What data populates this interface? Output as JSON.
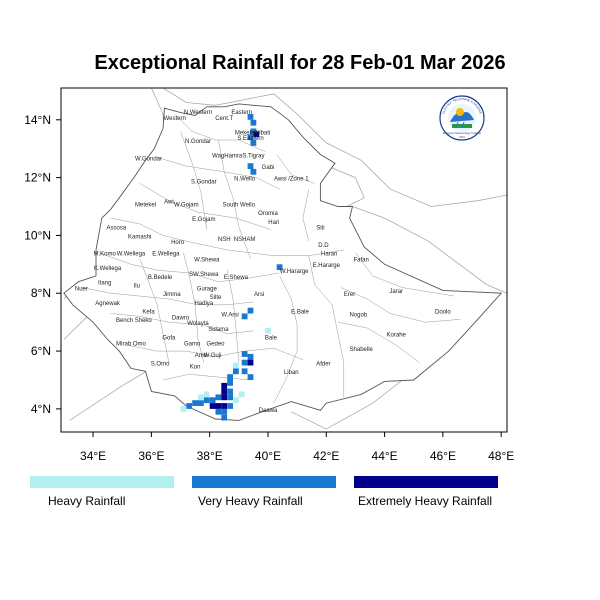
{
  "title": "Exceptional Rainfall for 28 Feb-01 Mar 2026",
  "colors": {
    "heavy": "#b3eef0",
    "very_heavy": "#1a78d0",
    "extremely_heavy": "#00008b",
    "border": "#555555",
    "neighbor_border": "#aaaaaa"
  },
  "chart_data": {
    "type": "heatmap",
    "x_ticks": [
      "34°E",
      "36°E",
      "38°E",
      "40°E",
      "42°E",
      "44°E",
      "46°E",
      "48°E"
    ],
    "y_ticks": [
      "4°N",
      "6°N",
      "8°N",
      "10°N",
      "12°N",
      "14°N"
    ],
    "xlim": [
      32.9,
      48.2
    ],
    "ylim": [
      3.2,
      15.1
    ],
    "legend": [
      {
        "label": "Heavy Rainfall",
        "class": "heavy"
      },
      {
        "label": "Very Heavy Rainfall",
        "class": "very_heavy"
      },
      {
        "label": "Extremely Heavy Rainfall",
        "class": "extremely_heavy"
      }
    ],
    "cells": [
      {
        "lon": 39.4,
        "lat": 14.1,
        "class": "very_heavy"
      },
      {
        "lon": 39.5,
        "lat": 13.9,
        "class": "very_heavy"
      },
      {
        "lon": 39.5,
        "lat": 13.6,
        "class": "very_heavy"
      },
      {
        "lon": 39.4,
        "lat": 13.4,
        "class": "very_heavy"
      },
      {
        "lon": 39.5,
        "lat": 13.2,
        "class": "very_heavy"
      },
      {
        "lon": 39.6,
        "lat": 13.5,
        "class": "extremely_heavy"
      },
      {
        "lon": 39.4,
        "lat": 12.4,
        "class": "very_heavy"
      },
      {
        "lon": 39.5,
        "lat": 12.2,
        "class": "very_heavy"
      },
      {
        "lon": 40.4,
        "lat": 8.9,
        "class": "very_heavy"
      },
      {
        "lon": 39.2,
        "lat": 7.2,
        "class": "very_heavy"
      },
      {
        "lon": 39.4,
        "lat": 7.4,
        "class": "very_heavy"
      },
      {
        "lon": 40.0,
        "lat": 6.7,
        "class": "heavy"
      },
      {
        "lon": 39.2,
        "lat": 5.9,
        "class": "very_heavy"
      },
      {
        "lon": 39.4,
        "lat": 5.8,
        "class": "very_heavy"
      },
      {
        "lon": 39.2,
        "lat": 5.6,
        "class": "very_heavy"
      },
      {
        "lon": 39.4,
        "lat": 5.6,
        "class": "extremely_heavy"
      },
      {
        "lon": 39.2,
        "lat": 5.3,
        "class": "very_heavy"
      },
      {
        "lon": 39.4,
        "lat": 5.1,
        "class": "very_heavy"
      },
      {
        "lon": 38.9,
        "lat": 5.3,
        "class": "very_heavy"
      },
      {
        "lon": 38.7,
        "lat": 5.1,
        "class": "very_heavy"
      },
      {
        "lon": 38.7,
        "lat": 4.9,
        "class": "very_heavy"
      },
      {
        "lon": 38.5,
        "lat": 4.8,
        "class": "extremely_heavy"
      },
      {
        "lon": 38.5,
        "lat": 4.6,
        "class": "extremely_heavy"
      },
      {
        "lon": 38.7,
        "lat": 4.6,
        "class": "very_heavy"
      },
      {
        "lon": 38.3,
        "lat": 4.4,
        "class": "very_heavy"
      },
      {
        "lon": 38.5,
        "lat": 4.4,
        "class": "extremely_heavy"
      },
      {
        "lon": 38.7,
        "lat": 4.4,
        "class": "very_heavy"
      },
      {
        "lon": 38.1,
        "lat": 4.3,
        "class": "very_heavy"
      },
      {
        "lon": 37.9,
        "lat": 4.3,
        "class": "very_heavy"
      },
      {
        "lon": 37.7,
        "lat": 4.2,
        "class": "very_heavy"
      },
      {
        "lon": 37.5,
        "lat": 4.2,
        "class": "very_heavy"
      },
      {
        "lon": 37.3,
        "lat": 4.1,
        "class": "very_heavy"
      },
      {
        "lon": 37.1,
        "lat": 4.0,
        "class": "heavy"
      },
      {
        "lon": 38.1,
        "lat": 4.1,
        "class": "extremely_heavy"
      },
      {
        "lon": 38.3,
        "lat": 4.1,
        "class": "extremely_heavy"
      },
      {
        "lon": 38.5,
        "lat": 4.1,
        "class": "extremely_heavy"
      },
      {
        "lon": 38.7,
        "lat": 4.1,
        "class": "very_heavy"
      },
      {
        "lon": 38.3,
        "lat": 3.9,
        "class": "very_heavy"
      },
      {
        "lon": 38.5,
        "lat": 3.9,
        "class": "very_heavy"
      },
      {
        "lon": 38.5,
        "lat": 3.7,
        "class": "very_heavy"
      },
      {
        "lon": 37.9,
        "lat": 4.5,
        "class": "heavy"
      },
      {
        "lon": 37.7,
        "lat": 4.4,
        "class": "heavy"
      },
      {
        "lon": 38.9,
        "lat": 4.3,
        "class": "heavy"
      },
      {
        "lon": 39.1,
        "lat": 4.5,
        "class": "heavy"
      },
      {
        "lon": 38.9,
        "lat": 5.5,
        "class": "heavy"
      }
    ]
  },
  "regions": [
    {
      "name": "Western",
      "lon": 36.8,
      "lat": 14.0
    },
    {
      "name": "N.Western",
      "lon": 37.6,
      "lat": 14.2
    },
    {
      "name": "Cent.T",
      "lon": 38.5,
      "lat": 14.0
    },
    {
      "name": "Eastern",
      "lon": 39.1,
      "lat": 14.2
    },
    {
      "name": "Mekele",
      "lon": 39.2,
      "lat": 13.5
    },
    {
      "name": "Kilbati",
      "lon": 39.8,
      "lat": 13.5
    },
    {
      "name": "N.Gondar",
      "lon": 37.6,
      "lat": 13.2
    },
    {
      "name": "S.Eastern",
      "lon": 39.4,
      "lat": 13.3
    },
    {
      "name": "W.Gondar",
      "lon": 35.9,
      "lat": 12.6
    },
    {
      "name": "WagHamra",
      "lon": 38.6,
      "lat": 12.7
    },
    {
      "name": "S.Tigray",
      "lon": 39.5,
      "lat": 12.7
    },
    {
      "name": "Gabi",
      "lon": 40.0,
      "lat": 12.3
    },
    {
      "name": "S.Gondar",
      "lon": 37.8,
      "lat": 11.8
    },
    {
      "name": "N.Wello",
      "lon": 39.2,
      "lat": 11.9
    },
    {
      "name": "Awsi /Zone 1",
      "lon": 40.8,
      "lat": 11.9
    },
    {
      "name": "Metekel",
      "lon": 35.8,
      "lat": 11.0
    },
    {
      "name": "Awi",
      "lon": 36.6,
      "lat": 11.1
    },
    {
      "name": "W.Gojam",
      "lon": 37.2,
      "lat": 11.0
    },
    {
      "name": "South Wello",
      "lon": 39.0,
      "lat": 11.0
    },
    {
      "name": "Oromia",
      "lon": 40.0,
      "lat": 10.7
    },
    {
      "name": "E.Gojam",
      "lon": 37.8,
      "lat": 10.5
    },
    {
      "name": "Hari",
      "lon": 40.2,
      "lat": 10.4
    },
    {
      "name": "Siti",
      "lon": 41.8,
      "lat": 10.2
    },
    {
      "name": "Assosa",
      "lon": 34.8,
      "lat": 10.2
    },
    {
      "name": "Kamashi",
      "lon": 35.6,
      "lat": 9.9
    },
    {
      "name": "Horo",
      "lon": 36.9,
      "lat": 9.7
    },
    {
      "name": "NSH",
      "lon": 38.5,
      "lat": 9.8
    },
    {
      "name": "NSHAM",
      "lon": 39.2,
      "lat": 9.8
    },
    {
      "name": "D.D",
      "lon": 41.9,
      "lat": 9.6
    },
    {
      "name": "Harari",
      "lon": 42.1,
      "lat": 9.3
    },
    {
      "name": "Fafan",
      "lon": 43.2,
      "lat": 9.1
    },
    {
      "name": "M.Komo",
      "lon": 34.4,
      "lat": 9.3
    },
    {
      "name": "W.Wellega",
      "lon": 35.3,
      "lat": 9.3
    },
    {
      "name": "E.Wellega",
      "lon": 36.5,
      "lat": 9.3
    },
    {
      "name": "W.Shewa",
      "lon": 37.9,
      "lat": 9.1
    },
    {
      "name": "W.Hararge",
      "lon": 40.9,
      "lat": 8.7
    },
    {
      "name": "E.Hararge",
      "lon": 42.0,
      "lat": 8.9
    },
    {
      "name": "K.Wellega",
      "lon": 34.5,
      "lat": 8.8
    },
    {
      "name": "SW.Shewa",
      "lon": 37.8,
      "lat": 8.6
    },
    {
      "name": "E.Shewa",
      "lon": 38.9,
      "lat": 8.5
    },
    {
      "name": "B.Bedele",
      "lon": 36.3,
      "lat": 8.5
    },
    {
      "name": "Nuer",
      "lon": 33.6,
      "lat": 8.1
    },
    {
      "name": "Itang",
      "lon": 34.4,
      "lat": 8.3
    },
    {
      "name": "Ilu",
      "lon": 35.5,
      "lat": 8.2
    },
    {
      "name": "Jimma",
      "lon": 36.7,
      "lat": 7.9
    },
    {
      "name": "Gurage",
      "lon": 37.9,
      "lat": 8.1
    },
    {
      "name": "Arsi",
      "lon": 39.7,
      "lat": 7.9
    },
    {
      "name": "Jarar",
      "lon": 44.4,
      "lat": 8.0
    },
    {
      "name": "Erer",
      "lon": 42.8,
      "lat": 7.9
    },
    {
      "name": "Agnewak",
      "lon": 34.5,
      "lat": 7.6
    },
    {
      "name": "Silte",
      "lon": 38.2,
      "lat": 7.8
    },
    {
      "name": "Hadiya",
      "lon": 37.8,
      "lat": 7.6
    },
    {
      "name": "Kefa",
      "lon": 35.9,
      "lat": 7.3
    },
    {
      "name": "W.Arsi",
      "lon": 38.7,
      "lat": 7.2
    },
    {
      "name": "E.Bale",
      "lon": 41.1,
      "lat": 7.3
    },
    {
      "name": "Nogob",
      "lon": 43.1,
      "lat": 7.2
    },
    {
      "name": "Doolo",
      "lon": 46.0,
      "lat": 7.3
    },
    {
      "name": "Bench Sheko",
      "lon": 35.4,
      "lat": 7.0
    },
    {
      "name": "Dawro",
      "lon": 37.0,
      "lat": 7.1
    },
    {
      "name": "Wolayta",
      "lon": 37.6,
      "lat": 6.9
    },
    {
      "name": "Sidama",
      "lon": 38.3,
      "lat": 6.7
    },
    {
      "name": "Korahe",
      "lon": 44.4,
      "lat": 6.5
    },
    {
      "name": "Bale",
      "lon": 40.1,
      "lat": 6.4
    },
    {
      "name": "Mirab Omo",
      "lon": 35.3,
      "lat": 6.2
    },
    {
      "name": "Gofa",
      "lon": 36.6,
      "lat": 6.4
    },
    {
      "name": "Gamo",
      "lon": 37.4,
      "lat": 6.2
    },
    {
      "name": "Gedeo",
      "lon": 38.2,
      "lat": 6.2
    },
    {
      "name": "Shabelle",
      "lon": 43.2,
      "lat": 6.0
    },
    {
      "name": "Amo",
      "lon": 37.7,
      "lat": 5.8
    },
    {
      "name": "W.Guji",
      "lon": 38.1,
      "lat": 5.8
    },
    {
      "name": "S.Omo",
      "lon": 36.3,
      "lat": 5.5
    },
    {
      "name": "Kon",
      "lon": 37.5,
      "lat": 5.4
    },
    {
      "name": "Afder",
      "lon": 41.9,
      "lat": 5.5
    },
    {
      "name": "Liban",
      "lon": 40.8,
      "lat": 5.2
    },
    {
      "name": "Daawa",
      "lon": 40.0,
      "lat": 3.9
    }
  ],
  "logo": {
    "name": "Ethiopian Meteorology Institute logo",
    "text_top": "የኢትዮጵያ ሚቲዎሮሎጂ ኢንስቲትዩት",
    "text_bottom": "Ethiopian Meteorology Institute",
    "year": "1951"
  }
}
